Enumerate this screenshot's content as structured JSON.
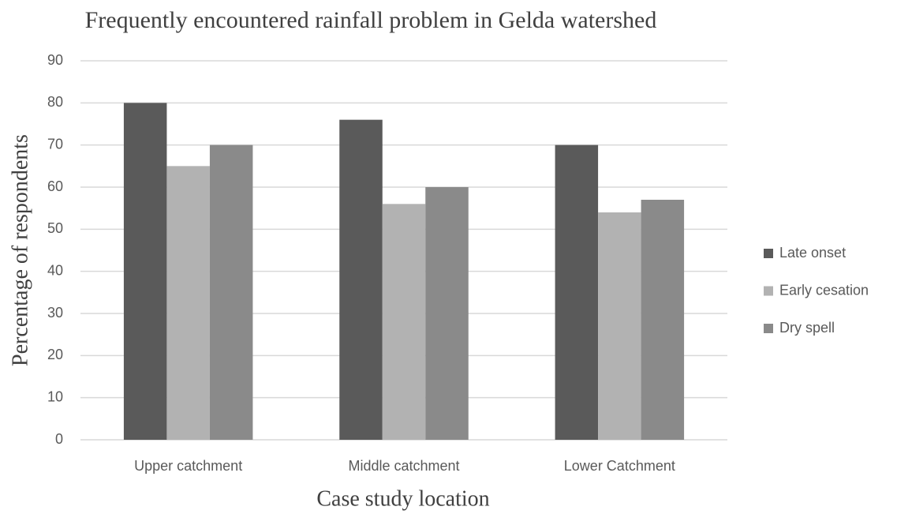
{
  "chart_data": {
    "type": "bar",
    "title": "Frequently encountered rainfall problem in Gelda watershed",
    "x_label": "Case study location",
    "y_label": "Percentage of respondents",
    "categories": [
      "Upper catchment",
      "Middle catchment",
      "Lower Catchment"
    ],
    "series": [
      {
        "name": "Late onset",
        "color": "#5a5a5a",
        "values": [
          80,
          76,
          70
        ]
      },
      {
        "name": "Early cesation",
        "color": "#b2b2b2",
        "values": [
          65,
          56,
          54
        ]
      },
      {
        "name": "Dry spell",
        "color": "#8a8a8a",
        "values": [
          70,
          60,
          57
        ]
      }
    ],
    "ylim": [
      0,
      90
    ],
    "yticks": [
      0,
      10,
      20,
      30,
      40,
      50,
      60,
      70,
      80,
      90
    ],
    "grid": true,
    "legend": "right"
  }
}
